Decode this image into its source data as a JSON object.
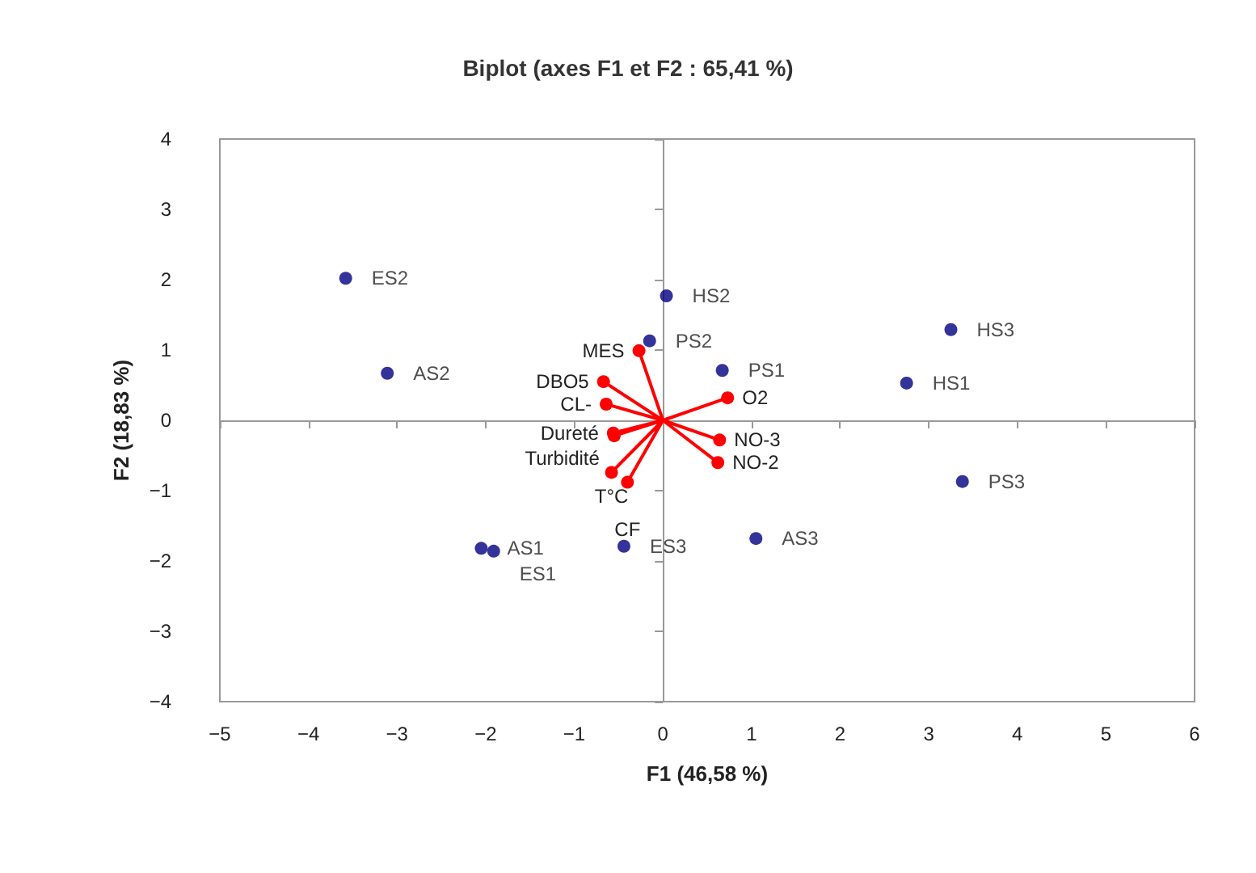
{
  "chart_data": {
    "type": "scatter",
    "title": "Biplot (axes F1 et F2 : 65,41 %)",
    "xlabel": "F1 (46,58 %)",
    "ylabel": "F2 (18,83 %)",
    "xlim": [
      -5,
      6
    ],
    "xticks": [
      -5,
      -4,
      -3,
      -2,
      -1,
      0,
      1,
      2,
      3,
      4,
      5,
      6
    ],
    "ylim": [
      -4,
      4
    ],
    "yticks": [
      -4,
      -3,
      -2,
      -1,
      0,
      1,
      2,
      3,
      4
    ],
    "marker": "circle",
    "series": [
      {
        "color": "#000080",
        "x": [
          -3.58,
          -3.11,
          0.04,
          -0.15,
          0.67,
          3.25,
          2.75,
          3.38,
          1.05,
          -0.44,
          -2.05,
          -1.91
        ],
        "values": [
          2.02,
          0.67,
          1.77,
          1.13,
          0.71,
          1.29,
          0.53,
          -0.87,
          -1.68,
          -1.79,
          -1.82,
          -1.86
        ],
        "value_labels": [
          "ES2",
          "AS2",
          "HS2",
          "PS2",
          "PS1",
          "HS3",
          "HS1",
          "PS3",
          "AS3",
          "ES3",
          "AS1",
          "ES1"
        ]
      },
      {
        "type": "line",
        "color": "#ff0000",
        "x": [
          0,
          -0.27,
          null,
          0,
          -0.67,
          null,
          0,
          -0.64,
          null,
          0,
          0.73,
          null,
          0,
          -0.56,
          null,
          0,
          -0.55,
          null,
          0,
          0.64,
          null,
          0,
          0.62,
          null,
          0,
          -0.58,
          null,
          0,
          -0.4
        ],
        "values": [
          0,
          0.99,
          null,
          0,
          0.55,
          null,
          0,
          0.23,
          null,
          0,
          0.32,
          null,
          0,
          -0.18,
          null,
          0,
          -0.22,
          null,
          0,
          -0.28,
          null,
          0,
          -0.6,
          null,
          0,
          -0.74,
          null,
          0,
          -0.88
        ],
        "value_labels": [
          null,
          "MES",
          null,
          null,
          "DBO5",
          null,
          null,
          "CL-",
          null,
          null,
          "O2",
          null,
          null,
          "Dureté",
          null,
          null,
          "Turbidité",
          null,
          null,
          "NO-3",
          null,
          null,
          "NO-2",
          null,
          null,
          "T°C",
          null,
          null,
          "CF"
        ]
      }
    ]
  }
}
